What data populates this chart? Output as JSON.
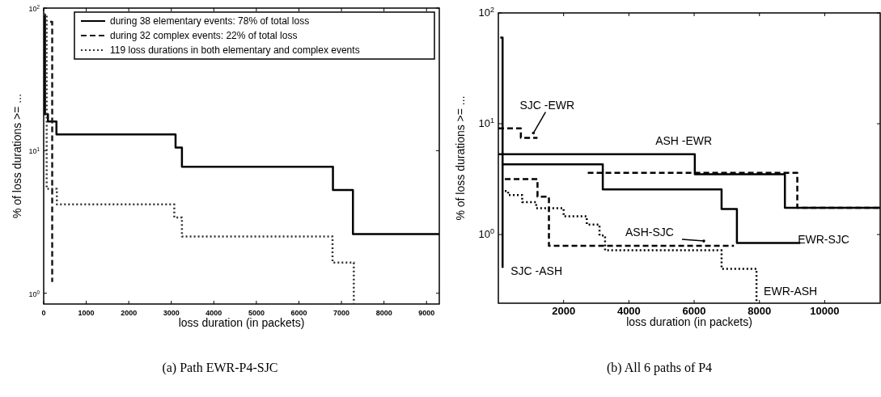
{
  "chart_data": [
    {
      "type": "step",
      "xlabel": "loss duration (in packets)",
      "ylabel": "% of loss durations >= ...",
      "log": "y",
      "xlim": [
        0,
        9300
      ],
      "xticks": [
        0,
        1000,
        2000,
        3000,
        4000,
        5000,
        6000,
        7000,
        8000,
        9000
      ],
      "ylim": [
        0.84,
        100
      ],
      "yticks": [
        {
          "value": 1,
          "label": "10$^{0}$"
        },
        {
          "value": 10,
          "label": "10$^{1}$"
        },
        {
          "value": 100,
          "label": "10$^{2}$"
        }
      ],
      "grid": false,
      "legend": "top",
      "marker": "none",
      "annotations": [
        "(a) Path EWR-P4-SJC"
      ],
      "series": [
        {
          "name": "during 38 elementary events: 78% of total loss",
          "color": "#000000",
          "line_style": "solid",
          "x": [
            0,
            30,
            100,
            300,
            3100,
            3250,
            6800,
            7270,
            9300
          ],
          "values": [
            90,
            18,
            16,
            13,
            10.5,
            7.7,
            5.3,
            2.6,
            2.6
          ]
        },
        {
          "name": "during 32 complex events: 22% of total loss",
          "color": "#1a1a1a",
          "line_style": "dashed",
          "x": [
            150,
            200
          ],
          "values": [
            80,
            1.2
          ]
        },
        {
          "name": "119 loss durations in both elementary and complex events",
          "color": "#333333",
          "line_style": "dotted",
          "x": [
            0,
            70,
            310,
            3070,
            3250,
            6790,
            7290
          ],
          "values": [
            90,
            5.4,
            4.2,
            3.4,
            2.5,
            1.64,
            0.84
          ]
        }
      ]
    },
    {
      "type": "step",
      "xlabel": "loss duration (in packets)",
      "ylabel": "% of loss durations >= ...",
      "log": "y",
      "xlim": [
        0,
        11700
      ],
      "xticks": [
        2000,
        4000,
        6000,
        8000,
        10000
      ],
      "ylim": [
        0.24,
        100
      ],
      "yticks": [
        {
          "value": 1,
          "label": "10$^{0}$"
        },
        {
          "value": 10,
          "label": "10$^{1}$"
        },
        {
          "value": 100,
          "label": "10$^{2}$"
        }
      ],
      "grid": false,
      "legend": false,
      "marker": "none",
      "annotations": [
        {
          "text": "SJC -EWR",
          "x": 1000,
          "y": 7.45
        },
        {
          "text": "ASH -EWR",
          "x": 5680,
          "y": 5.3
        },
        {
          "text": "ASH-SJC",
          "x": 6370,
          "y": 0.79
        },
        {
          "text": "EWR-SJC",
          "x": 9250,
          "y": 0.84
        },
        {
          "text": "SJC -ASH",
          "x": 130,
          "y": 0.5
        },
        {
          "text": "EWR-ASH",
          "x": 7910,
          "y": 0.3
        },
        "(b) All 6 paths of P4"
      ],
      "series": [
        {
          "color": "#000000",
          "line_style": "dashed",
          "x": [
            0,
            690,
            1200,
            2740,
            9160,
            11700
          ],
          "values": [
            9.1,
            7.45,
            null,
            3.6,
            1.74,
            1.74
          ]
        },
        {
          "color": "#000000",
          "line_style": "solid",
          "x": [
            0,
            6020,
            8780,
            11700
          ],
          "values": [
            5.3,
            3.5,
            1.74,
            1.74
          ]
        },
        {
          "color": "#000000",
          "line_style": "dashed",
          "x": [
            200,
            1200,
            1550,
            7220
          ],
          "values": [
            3.16,
            2.2,
            0.79,
            0.79
          ]
        },
        {
          "color": "#000000",
          "line_style": "solid",
          "x": [
            100,
            3200,
            6840,
            7310,
            9250
          ],
          "values": [
            4.3,
            2.55,
            1.7,
            0.84,
            0.84
          ]
        },
        {
          "color": "#000000",
          "line_style": "solid",
          "x": [
            60,
            130
          ],
          "values": [
            60,
            0.5
          ]
        },
        {
          "color": "#000000",
          "line_style": "dotted",
          "x": [
            200,
            300,
            730,
            1160,
            2000,
            2710,
            3100,
            3270,
            6840,
            7910
          ],
          "values": [
            2.47,
            2.27,
            1.96,
            1.73,
            1.46,
            1.23,
            0.98,
            0.72,
            0.49,
            0.24
          ]
        }
      ]
    }
  ]
}
